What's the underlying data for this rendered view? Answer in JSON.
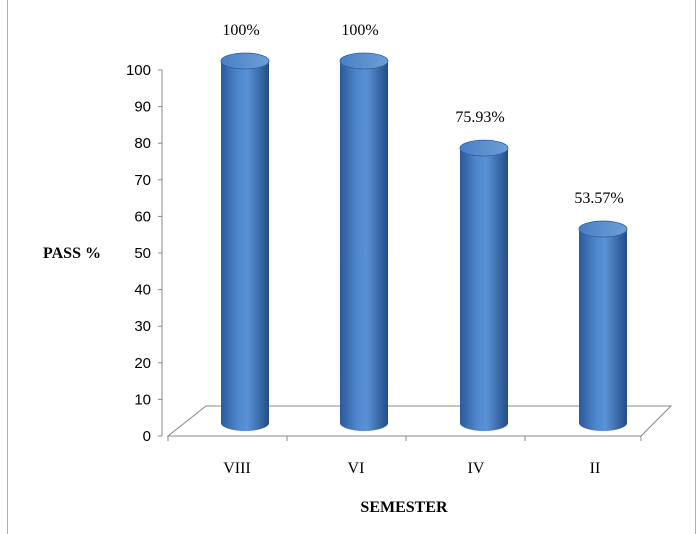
{
  "chart_data": {
    "type": "bar",
    "style": "3d-cylinder",
    "categories": [
      "VIII",
      "VI",
      "IV",
      "II"
    ],
    "values": [
      100,
      100,
      75.93,
      53.57
    ],
    "data_labels": [
      "100%",
      "100%",
      "75.93%",
      "53.57%"
    ],
    "title": "",
    "xlabel": "SEMESTER",
    "ylabel": "PASS %",
    "ylim": [
      0,
      100
    ],
    "yticks": [
      0,
      10,
      20,
      30,
      40,
      50,
      60,
      70,
      80,
      90,
      100
    ],
    "grid": false,
    "legend": false,
    "bar_color": "#3f73b8"
  }
}
